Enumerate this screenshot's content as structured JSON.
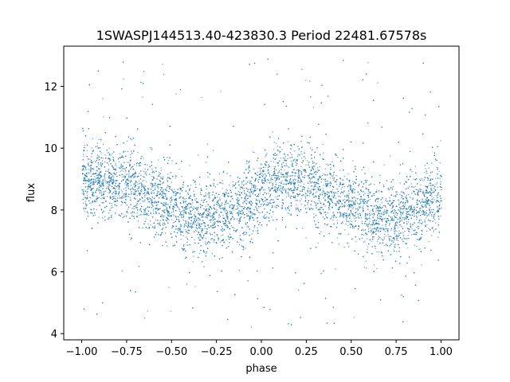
{
  "chart_data": {
    "type": "scatter",
    "title": "1SWASPJ144513.40-423830.3 Period 22481.67578s",
    "xlabel": "phase",
    "ylabel": "flux",
    "xlim": [
      -1.1,
      1.1
    ],
    "ylim": [
      3.8,
      13.3
    ],
    "x_ticks": [
      -1.0,
      -0.75,
      -0.5,
      -0.25,
      0.0,
      0.25,
      0.5,
      0.75,
      1.0
    ],
    "x_tick_labels": [
      "−1.00",
      "−0.75",
      "−0.50",
      "−0.25",
      "0.00",
      "0.25",
      "0.50",
      "0.75",
      "1.00"
    ],
    "y_ticks": [
      4,
      6,
      8,
      10,
      12
    ],
    "y_tick_labels": [
      "4",
      "6",
      "8",
      "10",
      "12"
    ],
    "grid": false,
    "point_color": "#1f77b4",
    "series": [
      {
        "x": [
          -1.0,
          -0.875,
          -0.75,
          -0.625,
          -0.5,
          -0.375,
          -0.25,
          -0.125,
          0.0,
          0.125,
          0.25,
          0.375,
          0.5,
          0.625,
          0.75,
          0.875,
          1.0
        ],
        "y_center": [
          8.9,
          9.0,
          8.9,
          8.5,
          8.1,
          7.75,
          7.75,
          8.1,
          8.6,
          9.0,
          9.0,
          8.6,
          8.1,
          7.7,
          7.7,
          8.1,
          8.6
        ],
        "y_spread": 1.2
      }
    ]
  }
}
